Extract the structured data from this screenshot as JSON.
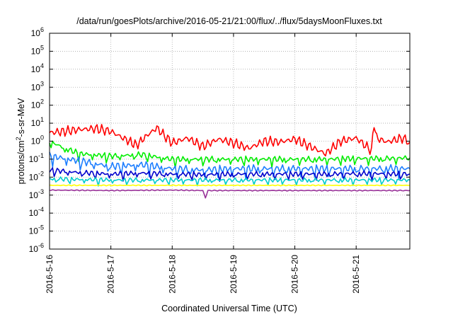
{
  "chart_data": {
    "type": "line",
    "title": "/data/run/goesPlots/archive/2016-05-21/21:00/flux/../flux/5daysMoonFluxes.txt",
    "xlabel": "Coordinated Universal Time (UTC)",
    "ylabel_parts": [
      "protons/cm",
      "2",
      "-s-sr-MeV"
    ],
    "yscale": "log",
    "ylim": [
      1e-06,
      1000000.0
    ],
    "xlim": [
      "2016-05-16T00:00",
      "2016-05-21T21:00"
    ],
    "grid": true,
    "y_ticks": [
      {
        "value": 1e-06,
        "base": "10",
        "exp": "-6"
      },
      {
        "value": 1e-05,
        "base": "10",
        "exp": "-5"
      },
      {
        "value": 0.0001,
        "base": "10",
        "exp": "-4"
      },
      {
        "value": 0.001,
        "base": "10",
        "exp": "-3"
      },
      {
        "value": 0.01,
        "base": "10",
        "exp": "-2"
      },
      {
        "value": 0.1,
        "base": "10",
        "exp": "-1"
      },
      {
        "value": 1,
        "base": "10",
        "exp": "0"
      },
      {
        "value": 10,
        "base": "10",
        "exp": "1"
      },
      {
        "value": 100,
        "base": "10",
        "exp": "2"
      },
      {
        "value": 1000,
        "base": "10",
        "exp": "3"
      },
      {
        "value": 10000,
        "base": "10",
        "exp": "4"
      },
      {
        "value": 100000,
        "base": "10",
        "exp": "5"
      },
      {
        "value": 1000000,
        "base": "10",
        "exp": "6"
      }
    ],
    "x_ticks": [
      {
        "value": "2016-05-16",
        "label": "2016-5-16"
      },
      {
        "value": "2016-05-17",
        "label": "2016-5-17"
      },
      {
        "value": "2016-05-18",
        "label": "2016-5-18"
      },
      {
        "value": "2016-05-19",
        "label": "2016-5-19"
      },
      {
        "value": "2016-05-20",
        "label": "2016-5-20"
      },
      {
        "value": "2016-05-21",
        "label": "2016-5-21"
      }
    ],
    "series": [
      {
        "color": "#ff0000",
        "points": [
          [
            "2016-05-16T00:00",
            3.0
          ],
          [
            "2016-05-16T06:00",
            3.5
          ],
          [
            "2016-05-16T12:00",
            4.5
          ],
          [
            "2016-05-16T18:00",
            5.0
          ],
          [
            "2016-05-17T00:00",
            3.5
          ],
          [
            "2016-05-17T06:00",
            1.2
          ],
          [
            "2016-05-17T10:00",
            0.6
          ],
          [
            "2016-05-17T14:00",
            2.0
          ],
          [
            "2016-05-17T18:00",
            5.5
          ],
          [
            "2016-05-17T21:00",
            2.0
          ],
          [
            "2016-05-18T00:00",
            0.8
          ],
          [
            "2016-05-18T06:00",
            1.5
          ],
          [
            "2016-05-18T12:00",
            0.5
          ],
          [
            "2016-05-18T18:00",
            1.3
          ],
          [
            "2016-05-19T00:00",
            0.8
          ],
          [
            "2016-05-19T06:00",
            0.4
          ],
          [
            "2016-05-19T12:00",
            1.0
          ],
          [
            "2016-05-19T18:00",
            0.9
          ],
          [
            "2016-05-20T00:00",
            1.3
          ],
          [
            "2016-05-20T06:00",
            0.5
          ],
          [
            "2016-05-20T12:00",
            0.2
          ],
          [
            "2016-05-20T18:00",
            1.0
          ],
          [
            "2016-05-21T00:00",
            1.5
          ],
          [
            "2016-05-21T06:00",
            0.3
          ],
          [
            "2016-05-21T07:00",
            10.0
          ],
          [
            "2016-05-21T08:00",
            1.5
          ],
          [
            "2016-05-21T12:00",
            0.9
          ],
          [
            "2016-05-21T18:00",
            1.5
          ],
          [
            "2016-05-21T21:00",
            0.9
          ]
        ]
      },
      {
        "color": "#00ee00",
        "points": [
          [
            "2016-05-16T00:00",
            1.0
          ],
          [
            "2016-05-16T06:00",
            0.4
          ],
          [
            "2016-05-16T12:00",
            0.2
          ],
          [
            "2016-05-17T00:00",
            0.15
          ],
          [
            "2016-05-17T12:00",
            0.18
          ],
          [
            "2016-05-18T00:00",
            0.1
          ],
          [
            "2016-05-18T12:00",
            0.1
          ],
          [
            "2016-05-19T00:00",
            0.1
          ],
          [
            "2016-05-19T12:00",
            0.1
          ],
          [
            "2016-05-20T00:00",
            0.1
          ],
          [
            "2016-05-20T12:00",
            0.1
          ],
          [
            "2016-05-21T00:00",
            0.11
          ],
          [
            "2016-05-21T12:00",
            0.11
          ],
          [
            "2016-05-21T21:00",
            0.12
          ]
        ]
      },
      {
        "color": "#1e7fff",
        "points": [
          [
            "2016-05-16T00:00",
            0.15
          ],
          [
            "2016-05-16T12:00",
            0.08
          ],
          [
            "2016-05-17T00:00",
            0.04
          ],
          [
            "2016-05-17T12:00",
            0.05
          ],
          [
            "2016-05-18T00:00",
            0.03
          ],
          [
            "2016-05-18T12:00",
            0.025
          ],
          [
            "2016-05-19T00:00",
            0.03
          ],
          [
            "2016-05-19T12:00",
            0.03
          ],
          [
            "2016-05-20T00:00",
            0.03
          ],
          [
            "2016-05-20T12:00",
            0.03
          ],
          [
            "2016-05-21T00:00",
            0.03
          ],
          [
            "2016-05-21T21:00",
            0.03
          ]
        ]
      },
      {
        "color": "#0000cc",
        "points": [
          [
            "2016-05-16T00:00",
            0.025
          ],
          [
            "2016-05-16T12:00",
            0.018
          ],
          [
            "2016-05-17T00:00",
            0.015
          ],
          [
            "2016-05-17T12:00",
            0.017
          ],
          [
            "2016-05-18T00:00",
            0.015
          ],
          [
            "2016-05-18T12:00",
            0.014
          ],
          [
            "2016-05-19T00:00",
            0.015
          ],
          [
            "2016-05-19T12:00",
            0.015
          ],
          [
            "2016-05-20T00:00",
            0.015
          ],
          [
            "2016-05-20T12:00",
            0.015
          ],
          [
            "2016-05-21T00:00",
            0.016
          ],
          [
            "2016-05-21T21:00",
            0.015
          ]
        ]
      },
      {
        "color": "#00cccc",
        "points": [
          [
            "2016-05-16T00:00",
            0.008
          ],
          [
            "2016-05-17T00:00",
            0.007
          ],
          [
            "2016-05-18T00:00",
            0.007
          ],
          [
            "2016-05-19T00:00",
            0.007
          ],
          [
            "2016-05-20T00:00",
            0.007
          ],
          [
            "2016-05-21T00:00",
            0.007
          ],
          [
            "2016-05-21T21:00",
            0.007
          ]
        ]
      },
      {
        "color": "#ffff00",
        "points": [
          [
            "2016-05-16T00:00",
            0.0035
          ],
          [
            "2016-05-17T00:00",
            0.0035
          ],
          [
            "2016-05-18T00:00",
            0.0035
          ],
          [
            "2016-05-19T00:00",
            0.0035
          ],
          [
            "2016-05-20T00:00",
            0.0035
          ],
          [
            "2016-05-21T00:00",
            0.0035
          ],
          [
            "2016-05-21T21:00",
            0.0035
          ]
        ]
      },
      {
        "color": "#993399",
        "points": [
          [
            "2016-05-16T00:00",
            0.0019
          ],
          [
            "2016-05-17T00:00",
            0.0018
          ],
          [
            "2016-05-18T00:00",
            0.0019
          ],
          [
            "2016-05-18T12:00",
            0.0018
          ],
          [
            "2016-05-18T13:00",
            0.0007
          ],
          [
            "2016-05-18T14:00",
            0.0018
          ],
          [
            "2016-05-19T00:00",
            0.0018
          ],
          [
            "2016-05-20T00:00",
            0.0018
          ],
          [
            "2016-05-21T00:00",
            0.0018
          ],
          [
            "2016-05-21T21:00",
            0.0018
          ]
        ]
      }
    ]
  }
}
